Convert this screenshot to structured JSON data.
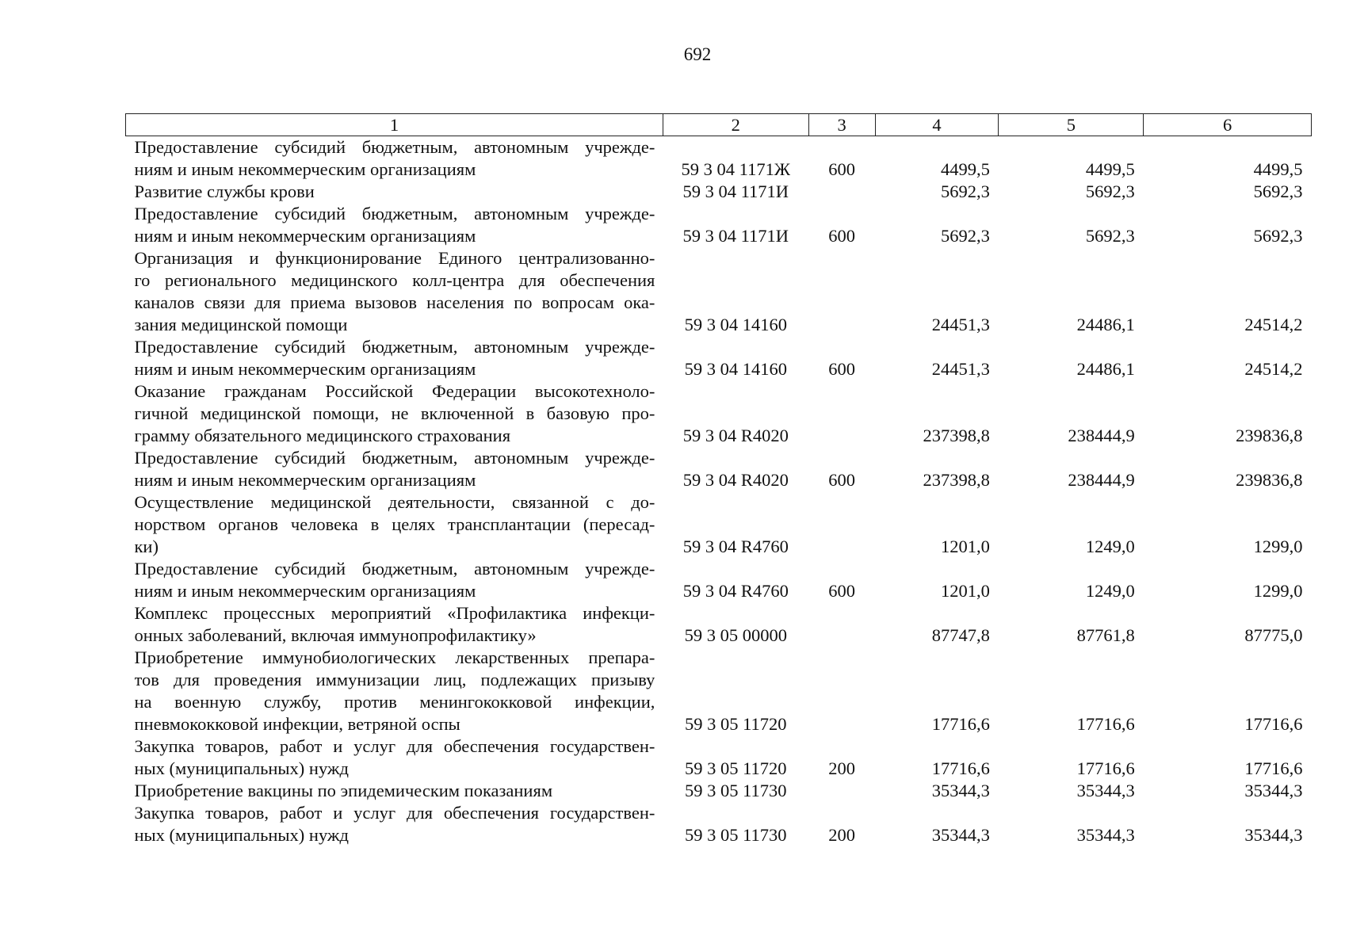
{
  "page_number": "692",
  "header": [
    "1",
    "2",
    "3",
    "4",
    "5",
    "6"
  ],
  "rows": [
    {
      "lines": [
        "Предоставление субсидий бюджетным, автономным учрежде-",
        "ниям и иным некоммерческим организациям"
      ],
      "code": "59 3 04 1171Ж",
      "type": "600",
      "v4": "4499,5",
      "v5": "4499,5",
      "v6": "4499,5"
    },
    {
      "lines": [
        "Развитие службы крови"
      ],
      "code": "59 3 04 1171И",
      "type": "",
      "v4": "5692,3",
      "v5": "5692,3",
      "v6": "5692,3"
    },
    {
      "lines": [
        "Предоставление субсидий бюджетным, автономным учрежде-",
        "ниям и иным некоммерческим организациям"
      ],
      "code": "59 3 04 1171И",
      "type": "600",
      "v4": "5692,3",
      "v5": "5692,3",
      "v6": "5692,3"
    },
    {
      "lines": [
        "Организация и функционирование Единого централизованно-",
        "го регионального медицинского колл-центра для обеспечения",
        "каналов связи для приема вызовов населения по вопросам ока-",
        "зания медицинской помощи"
      ],
      "code": "59 3 04 14160",
      "type": "",
      "v4": "24451,3",
      "v5": "24486,1",
      "v6": "24514,2"
    },
    {
      "lines": [
        "Предоставление субсидий бюджетным, автономным учрежде-",
        "ниям и иным некоммерческим организациям"
      ],
      "code": "59 3 04 14160",
      "type": "600",
      "v4": "24451,3",
      "v5": "24486,1",
      "v6": "24514,2"
    },
    {
      "lines": [
        "Оказание гражданам Российской Федерации высокотехноло-",
        "гичной медицинской помощи, не включенной в базовую про-",
        "грамму обязательного медицинского страхования"
      ],
      "code": "59 3 04 R4020",
      "type": "",
      "v4": "237398,8",
      "v5": "238444,9",
      "v6": "239836,8"
    },
    {
      "lines": [
        "Предоставление субсидий бюджетным, автономным учрежде-",
        "ниям и иным некоммерческим организациям"
      ],
      "code": "59 3 04 R4020",
      "type": "600",
      "v4": "237398,8",
      "v5": "238444,9",
      "v6": "239836,8"
    },
    {
      "lines": [
        "Осуществление медицинской деятельности, связанной с до-",
        "норством органов человека в целях трансплантации (пересад-",
        "ки)"
      ],
      "code": "59 3 04 R4760",
      "type": "",
      "v4": "1201,0",
      "v5": "1249,0",
      "v6": "1299,0"
    },
    {
      "lines": [
        "Предоставление субсидий бюджетным, автономным учрежде-",
        "ниям и иным некоммерческим организациям"
      ],
      "code": "59 3 04 R4760",
      "type": "600",
      "v4": "1201,0",
      "v5": "1249,0",
      "v6": "1299,0"
    },
    {
      "lines": [
        "Комплекс процессных мероприятий «Профилактика инфекци-",
        "онных заболеваний, включая иммунопрофилактику»"
      ],
      "code": "59 3 05 00000",
      "type": "",
      "v4": "87747,8",
      "v5": "87761,8",
      "v6": "87775,0"
    },
    {
      "lines": [
        "Приобретение иммунобиологических лекарственных препара-",
        "тов для проведения иммунизации лиц, подлежащих призыву",
        "на военную службу, против менингококковой инфекции,",
        "пневмококковой инфекции, ветряной оспы"
      ],
      "code": "59 3 05 11720",
      "type": "",
      "v4": "17716,6",
      "v5": "17716,6",
      "v6": "17716,6"
    },
    {
      "lines": [
        "Закупка товаров, работ и услуг для обеспечения государствен-",
        "ных (муниципальных) нужд"
      ],
      "code": "59 3 05 11720",
      "type": "200",
      "v4": "17716,6",
      "v5": "17716,6",
      "v6": "17716,6"
    },
    {
      "lines": [
        "Приобретение вакцины по эпидемическим показаниям"
      ],
      "code": "59 3 05 11730",
      "type": "",
      "v4": "35344,3",
      "v5": "35344,3",
      "v6": "35344,3"
    },
    {
      "lines": [
        "Закупка товаров, работ и услуг для обеспечения государствен-",
        "ных (муниципальных) нужд"
      ],
      "code": "59 3 05 11730",
      "type": "200",
      "v4": "35344,3",
      "v5": "35344,3",
      "v6": "35344,3"
    }
  ]
}
